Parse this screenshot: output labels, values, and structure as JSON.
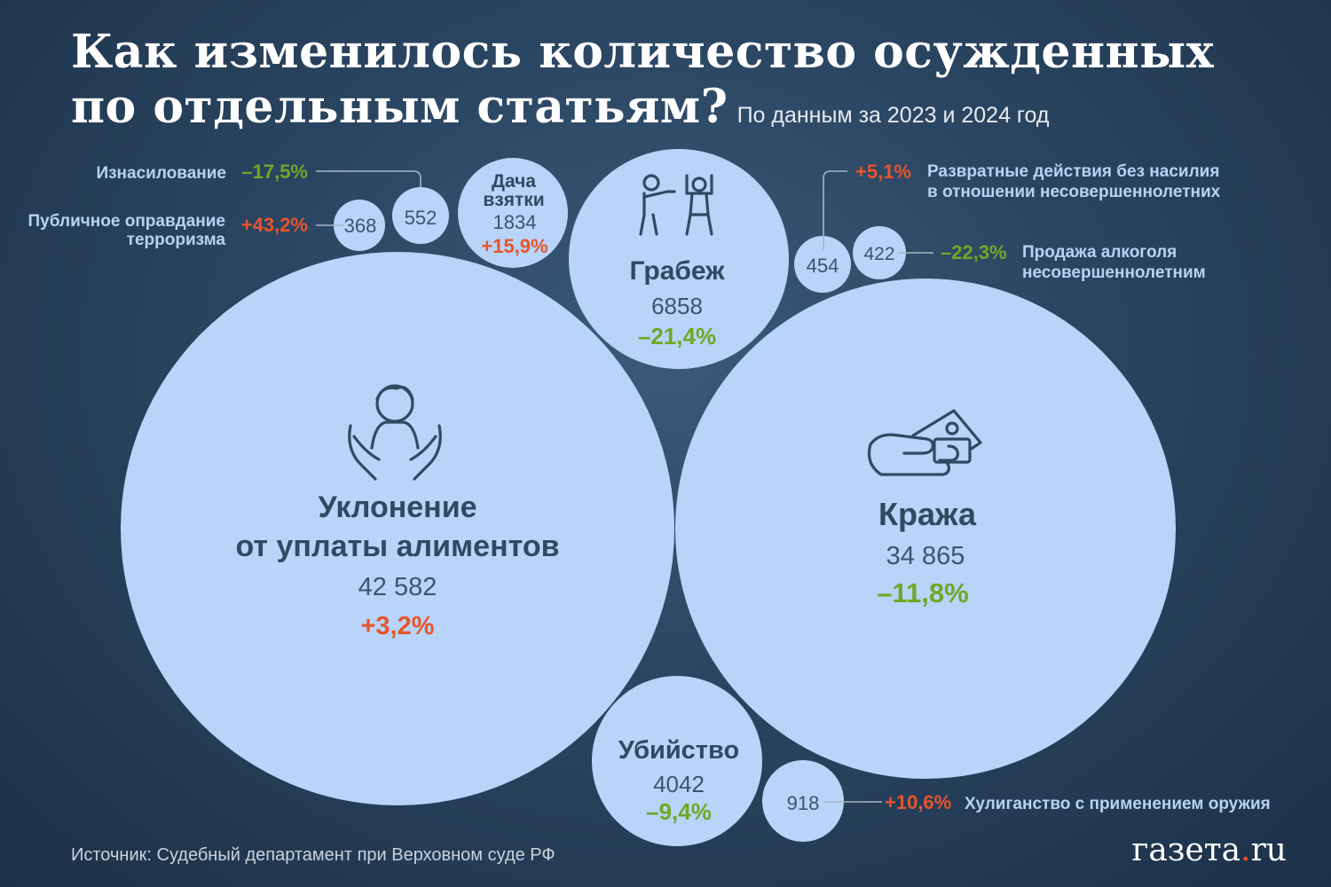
{
  "title": {
    "line1": "Как изменилось количество осужденных",
    "line2": "по отдельным статьям?",
    "subtitle": "По данным за 2023 и 2024 год"
  },
  "source": "Источник:  Судебный департамент при Верховном суде РФ",
  "logo": {
    "text": "газета",
    "dot": ".",
    "suffix": "ru"
  },
  "colors": {
    "bubble": "#b8d4f8",
    "label_dark": "#2f4a62",
    "value_text": "#3d5470",
    "increase": "#e8542b",
    "decrease": "#6fa827",
    "label_light": "#b6d3f4",
    "leader": "#a9b6c4"
  },
  "chart_data": {
    "type": "bubble",
    "title": "Как изменилось количество осужденных по отдельным статьям?",
    "subtitle": "По данным за 2023 и 2024 год",
    "items": [
      {
        "id": "alimony",
        "label": [
          "Уклонение",
          "от уплаты алиментов"
        ],
        "value": 42582,
        "value_label": "42 582",
        "change": "+3,2%",
        "trend": "up",
        "icon": "hands-person-icon"
      },
      {
        "id": "theft",
        "label": [
          "Кража"
        ],
        "value": 34865,
        "value_label": "34 865",
        "change": "–11,8%",
        "trend": "down",
        "icon": "hand-money-icon"
      },
      {
        "id": "robbery",
        "label": [
          "Грабеж"
        ],
        "value": 6858,
        "value_label": "6858",
        "change": "–21,4%",
        "trend": "down",
        "icon": "robbery-icon"
      },
      {
        "id": "murder",
        "label": [
          "Убийство"
        ],
        "value": 4042,
        "value_label": "4042",
        "change": "–9,4%",
        "trend": "down"
      },
      {
        "id": "bribe",
        "label": [
          "Дача",
          "взятки"
        ],
        "value": 1834,
        "value_label": "1834",
        "change": "+15,9%",
        "trend": "up"
      },
      {
        "id": "hooligan",
        "label": [
          "Хулиганство с применением оружия"
        ],
        "value": 918,
        "value_label": "918",
        "change": "+10,6%",
        "trend": "up"
      },
      {
        "id": "rape",
        "label": [
          "Изнасилование"
        ],
        "value": 552,
        "value_label": "552",
        "change": "–17,5%",
        "trend": "down"
      },
      {
        "id": "minors",
        "label": [
          "Развратные действия без насилия",
          "в отношении несовершеннолетних"
        ],
        "value": 454,
        "value_label": "454",
        "change": "+5,1%",
        "trend": "up"
      },
      {
        "id": "alcohol",
        "label": [
          "Продажа алкоголя",
          "несовершеннолетним"
        ],
        "value": 422,
        "value_label": "422",
        "change": "–22,3%",
        "trend": "down"
      },
      {
        "id": "terrorism",
        "label": [
          "Публичное оправдание",
          "терроризма"
        ],
        "value": 368,
        "value_label": "368",
        "change": "+43,2%",
        "trend": "up"
      }
    ]
  }
}
